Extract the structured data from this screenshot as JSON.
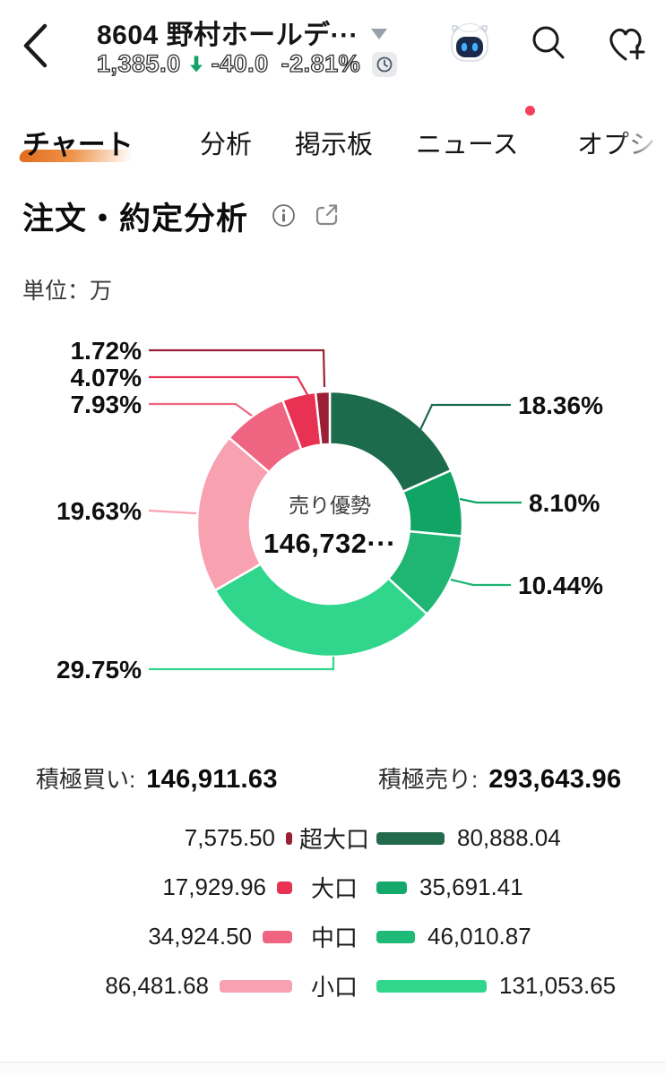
{
  "header": {
    "title": "8604  野村ホールデ···",
    "price": "1,385.0",
    "change": "-40.0",
    "change_pct": "-2.81%",
    "change_direction": "down",
    "change_color": "#12A266"
  },
  "tabs": [
    {
      "label": "チャート",
      "active": true
    },
    {
      "label": "分析",
      "active": false
    },
    {
      "label": "掲示板",
      "active": false
    },
    {
      "label": "ニュース",
      "active": false,
      "badge": true
    },
    {
      "label": "オプシ",
      "active": false
    }
  ],
  "section": {
    "title": "注文・約定分析"
  },
  "unit_label": "単位：万",
  "chart_data": {
    "type": "pie",
    "variant": "donut",
    "title": "注文・約定分析",
    "unit": "万",
    "center": {
      "label": "売り優勢",
      "value": "146,732···"
    },
    "segments": [
      {
        "name": "超大口売り",
        "pct": 18.36,
        "pct_label": "18.36%",
        "color": "#1C6B4D"
      },
      {
        "name": "大口売り",
        "pct": 8.1,
        "pct_label": "8.10%",
        "color": "#10A565"
      },
      {
        "name": "中口売り",
        "pct": 10.44,
        "pct_label": "10.44%",
        "color": "#1FB573"
      },
      {
        "name": "小口売り",
        "pct": 29.75,
        "pct_label": "29.75%",
        "color": "#30D68C"
      },
      {
        "name": "小口買い",
        "pct": 19.63,
        "pct_label": "19.63%",
        "color": "#F8A1B1"
      },
      {
        "name": "中口買い",
        "pct": 7.93,
        "pct_label": "7.93%",
        "color": "#EF6480"
      },
      {
        "name": "大口買い",
        "pct": 4.07,
        "pct_label": "4.07%",
        "color": "#E83153"
      },
      {
        "name": "超大口買い",
        "pct": 1.72,
        "pct_label": "1.72%",
        "color": "#9B2035"
      }
    ]
  },
  "summary": {
    "buy_label": "積極買い:",
    "buy_value": "146,911.63",
    "sell_label": "積極売り:",
    "sell_value": "293,643.96"
  },
  "legend": {
    "rows": [
      {
        "label": "超大口",
        "buy_value": "7,575.50",
        "buy_num": 7575.5,
        "buy_color": "#9B2035",
        "sell_value": "80,888.04",
        "sell_num": 80888.04,
        "sell_color": "#23694C"
      },
      {
        "label": "大口",
        "buy_value": "17,929.96",
        "buy_num": 17929.96,
        "buy_color": "#E83153",
        "sell_value": "35,691.41",
        "sell_num": 35691.41,
        "sell_color": "#14A96B"
      },
      {
        "label": "中口",
        "buy_value": "34,924.50",
        "buy_num": 34924.5,
        "buy_color": "#EF6480",
        "sell_value": "46,010.87",
        "sell_num": 46010.87,
        "sell_color": "#1FBA78"
      },
      {
        "label": "小口",
        "buy_value": "86,481.68",
        "buy_num": 86481.68,
        "buy_color": "#F8A1B1",
        "sell_value": "131,053.65",
        "sell_num": 131053.65,
        "sell_color": "#2FD68C"
      }
    ]
  }
}
